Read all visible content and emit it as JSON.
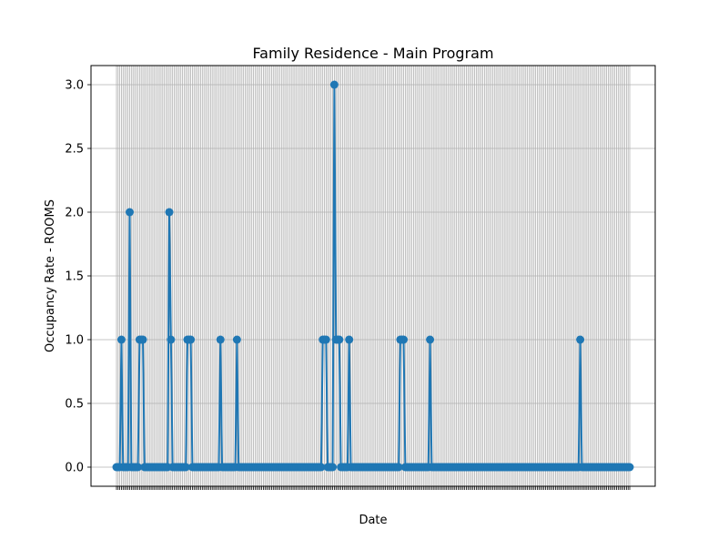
{
  "chart_data": {
    "type": "line",
    "title": "Family Residence - Main Program",
    "xlabel": "Date",
    "ylabel": "Occupancy Rate - ROOMS",
    "ylim": [
      -0.15,
      3.15
    ],
    "yticks": [
      "0.0",
      "0.5",
      "1.0",
      "1.5",
      "2.0",
      "2.5",
      "3.0"
    ],
    "grid": true,
    "legend": "none",
    "colors": {
      "line": "#1f77b4",
      "grid": "#b0b0b0",
      "axis": "#000000"
    },
    "series": [
      {
        "values": [
          0,
          0,
          0,
          1,
          0,
          0,
          0,
          0,
          2,
          0,
          0,
          0,
          0,
          0,
          1,
          1,
          1,
          0,
          0,
          0,
          0,
          0,
          0,
          0,
          0,
          0,
          0,
          0,
          0,
          0,
          0,
          0,
          2,
          1,
          0,
          0,
          0,
          0,
          0,
          0,
          0,
          0,
          0,
          1,
          1,
          1,
          0,
          0,
          0,
          0,
          0,
          0,
          0,
          0,
          0,
          0,
          0,
          0,
          0,
          0,
          0,
          0,
          0,
          1,
          0,
          0,
          0,
          0,
          0,
          0,
          0,
          0,
          0,
          1,
          0,
          0,
          0,
          0,
          0,
          0,
          0,
          0,
          0,
          0,
          0,
          0,
          0,
          0,
          0,
          0,
          0,
          0,
          0,
          0,
          0,
          0,
          0,
          0,
          0,
          0,
          0,
          0,
          0,
          0,
          0,
          0,
          0,
          0,
          0,
          0,
          0,
          0,
          0,
          0,
          0,
          0,
          0,
          0,
          0,
          0,
          0,
          0,
          0,
          0,
          0,
          1,
          1,
          1,
          0,
          0,
          0,
          0,
          3,
          1,
          1,
          1,
          0,
          0,
          0,
          0,
          0,
          1,
          0,
          0,
          0,
          0,
          0,
          0,
          0,
          0,
          0,
          0,
          0,
          0,
          0,
          0,
          0,
          0,
          0,
          0,
          0,
          0,
          0,
          0,
          0,
          0,
          0,
          0,
          0,
          0,
          0,
          0,
          1,
          1,
          1,
          0,
          0,
          0,
          0,
          0,
          0,
          0,
          0,
          0,
          0,
          0,
          0,
          0,
          0,
          0,
          1,
          0,
          0,
          0,
          0,
          0,
          0,
          0,
          0,
          0,
          0,
          0,
          0,
          0,
          0,
          0,
          0,
          0,
          0,
          0,
          0,
          0,
          0,
          0,
          0,
          0,
          0,
          0,
          0,
          0,
          0,
          0,
          0,
          0,
          0,
          0,
          0,
          0,
          0,
          0,
          0,
          0,
          0,
          0,
          0,
          0,
          0,
          0,
          0,
          0,
          0,
          0,
          0,
          0,
          0,
          0,
          0,
          0,
          0,
          0,
          0,
          0,
          0,
          0,
          0,
          0,
          0,
          0,
          0,
          0,
          0,
          0,
          0,
          0,
          0,
          0,
          0,
          0,
          0,
          0,
          0,
          0,
          0,
          0,
          0,
          0,
          0,
          0,
          0,
          0,
          0,
          1,
          0,
          0,
          0,
          0,
          0,
          0,
          0,
          0,
          0,
          0,
          0,
          0,
          0,
          0,
          0,
          0,
          0,
          0,
          0,
          0,
          0,
          0,
          0,
          0,
          0,
          0,
          0,
          0,
          0,
          0
        ]
      }
    ]
  }
}
